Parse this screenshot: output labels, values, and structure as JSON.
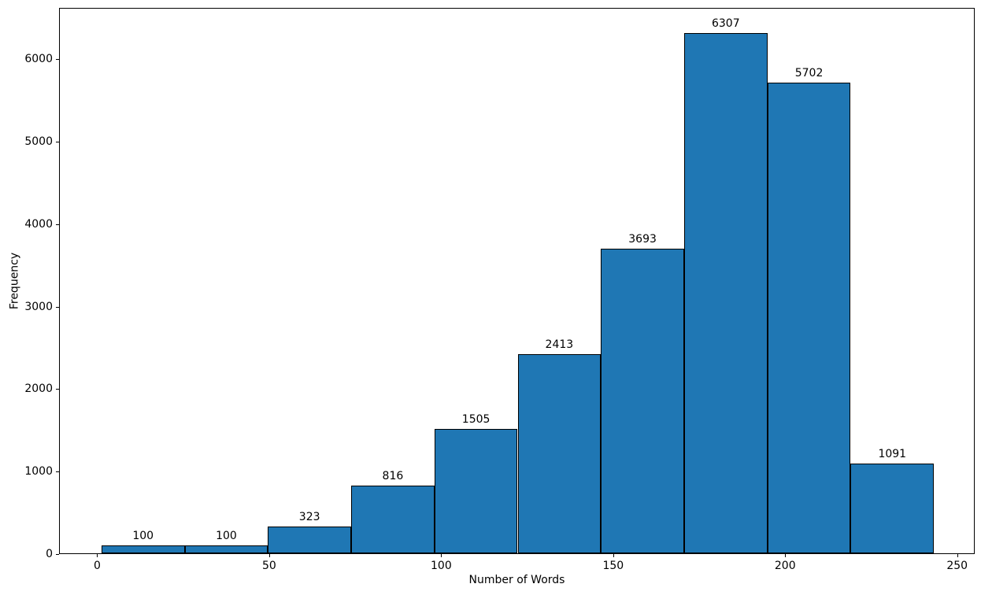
{
  "chart_data": {
    "type": "bar",
    "subtype": "histogram",
    "title": "",
    "xlabel": "Number of Words",
    "ylabel": "Frequency",
    "bin_edges": [
      1.0,
      25.2,
      49.4,
      73.6,
      97.8,
      122.0,
      146.2,
      170.4,
      194.6,
      218.8,
      243.0
    ],
    "values": [
      100,
      100,
      323,
      816,
      1505,
      2413,
      3693,
      6307,
      5702,
      1091
    ],
    "bar_labels": [
      "100",
      "100",
      "323",
      "816",
      "1505",
      "2413",
      "3693",
      "6307",
      "5702",
      "1091"
    ],
    "x_ticks": [
      0,
      50,
      100,
      150,
      200,
      250
    ],
    "x_tick_labels": [
      "0",
      "50",
      "100",
      "150",
      "200",
      "250"
    ],
    "y_ticks": [
      0,
      1000,
      2000,
      3000,
      4000,
      5000,
      6000
    ],
    "y_tick_labels": [
      "0",
      "1000",
      "2000",
      "3000",
      "4000",
      "5000",
      "6000"
    ],
    "xlim": [
      -11.1,
      255.1
    ],
    "ylim": [
      0,
      6622
    ],
    "grid": false,
    "legend": null,
    "bar_color": "#1f77b4",
    "bar_edge_color": "#000000",
    "background_color": "#ffffff",
    "text_color": "#000000"
  }
}
